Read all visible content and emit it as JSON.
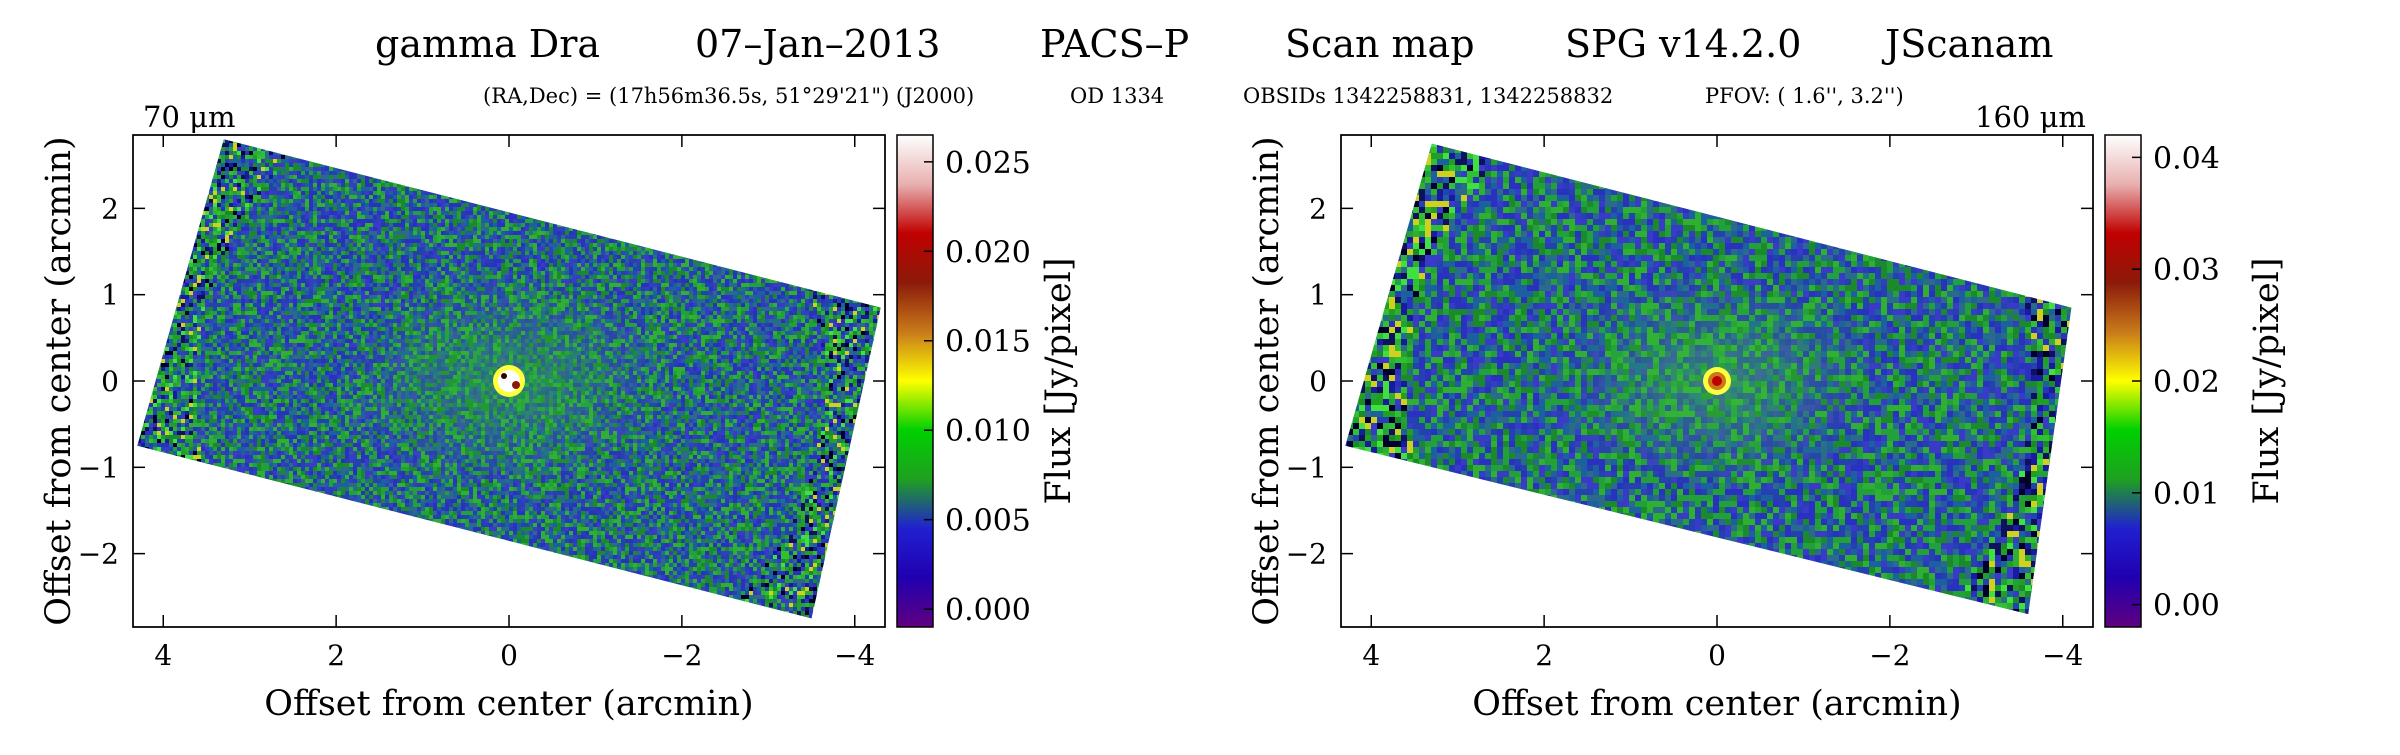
{
  "header": {
    "target": "gamma Dra",
    "date": "07–Jan–2013",
    "instrument": "PACS–P",
    "mode": "Scan map",
    "pipeline": "SPG v14.2.0",
    "mapper": "JScanam"
  },
  "subheader": {
    "coords": "(RA,Dec) = (17h56m36.5s, 51°29'21\") (J2000)",
    "od": "OD 1334",
    "obsids": "OBSIDs 1342258831, 1342258832",
    "pfov": "PFOV: ( 1.6'', 3.2'')"
  },
  "colors": {
    "colormap": [
      "#ffffff",
      "#e8b0b0",
      "#c00000",
      "#8b1a0a",
      "#c87a1a",
      "#ffff00",
      "#00d000",
      "#1fa020",
      "#2020d0",
      "#2000b0",
      "#600080"
    ],
    "background_noise": [
      "#1a8a2a",
      "#22a03a",
      "#2a6a8a",
      "#2540b0",
      "#2a30c0",
      "#1c60a0",
      "#30b030",
      "#3a3ac8"
    ],
    "edge_noise": [
      "#000030",
      "#101060",
      "#30c030",
      "#20a020",
      "#1a1aa0",
      "#40e040",
      "#d0d020"
    ]
  },
  "chart_data": [
    {
      "type": "heatmap",
      "wavelength_label": "70 μm",
      "xlabel": "Offset from center (arcmin)",
      "ylabel": "Offset from center (arcmin)",
      "colorbar_label": "Flux [Jy/pixel]",
      "x_ticks": [
        "4",
        "2",
        "0",
        "−2",
        "−4"
      ],
      "x_tick_values": [
        4,
        2,
        0,
        -2,
        -4
      ],
      "y_ticks": [
        "2",
        "1",
        "0",
        "−1",
        "−2"
      ],
      "y_tick_values": [
        2,
        1,
        0,
        -1,
        -2
      ],
      "xlim": [
        4.35,
        -4.35
      ],
      "ylim": [
        -2.85,
        2.85
      ],
      "colorbar_ticks": [
        "0.025",
        "0.020",
        "0.015",
        "0.010",
        "0.005",
        "0.000"
      ],
      "colorbar_tick_values": [
        0.025,
        0.02,
        0.015,
        0.01,
        0.005,
        0.0
      ],
      "colorbar_range": [
        -0.001,
        0.0265
      ],
      "source_position": [
        0,
        0
      ],
      "footprint_corners": [
        [
          3.3,
          2.8
        ],
        [
          -4.3,
          0.85
        ],
        [
          -3.5,
          -2.75
        ],
        [
          4.3,
          -0.75
        ]
      ]
    },
    {
      "type": "heatmap",
      "wavelength_label": "160 μm",
      "xlabel": "Offset from center (arcmin)",
      "ylabel": "Offset from center (arcmin)",
      "colorbar_label": "Flux [Jy/pixel]",
      "x_ticks": [
        "4",
        "2",
        "0",
        "−2",
        "−4"
      ],
      "x_tick_values": [
        4,
        2,
        0,
        -2,
        -4
      ],
      "y_ticks": [
        "2",
        "1",
        "0",
        "−1",
        "−2"
      ],
      "y_tick_values": [
        2,
        1,
        0,
        -1,
        -2
      ],
      "xlim": [
        4.35,
        -4.35
      ],
      "ylim": [
        -2.85,
        2.85
      ],
      "colorbar_ticks": [
        "0.04",
        "0.03",
        "0.02",
        "0.01",
        "0.00"
      ],
      "colorbar_tick_values": [
        0.04,
        0.03,
        0.02,
        0.01,
        0.0
      ],
      "colorbar_range": [
        -0.002,
        0.042
      ],
      "source_position": [
        0,
        0
      ],
      "footprint_corners": [
        [
          3.3,
          2.75
        ],
        [
          -4.1,
          0.85
        ],
        [
          -3.6,
          -2.7
        ],
        [
          4.3,
          -0.75
        ]
      ]
    }
  ]
}
